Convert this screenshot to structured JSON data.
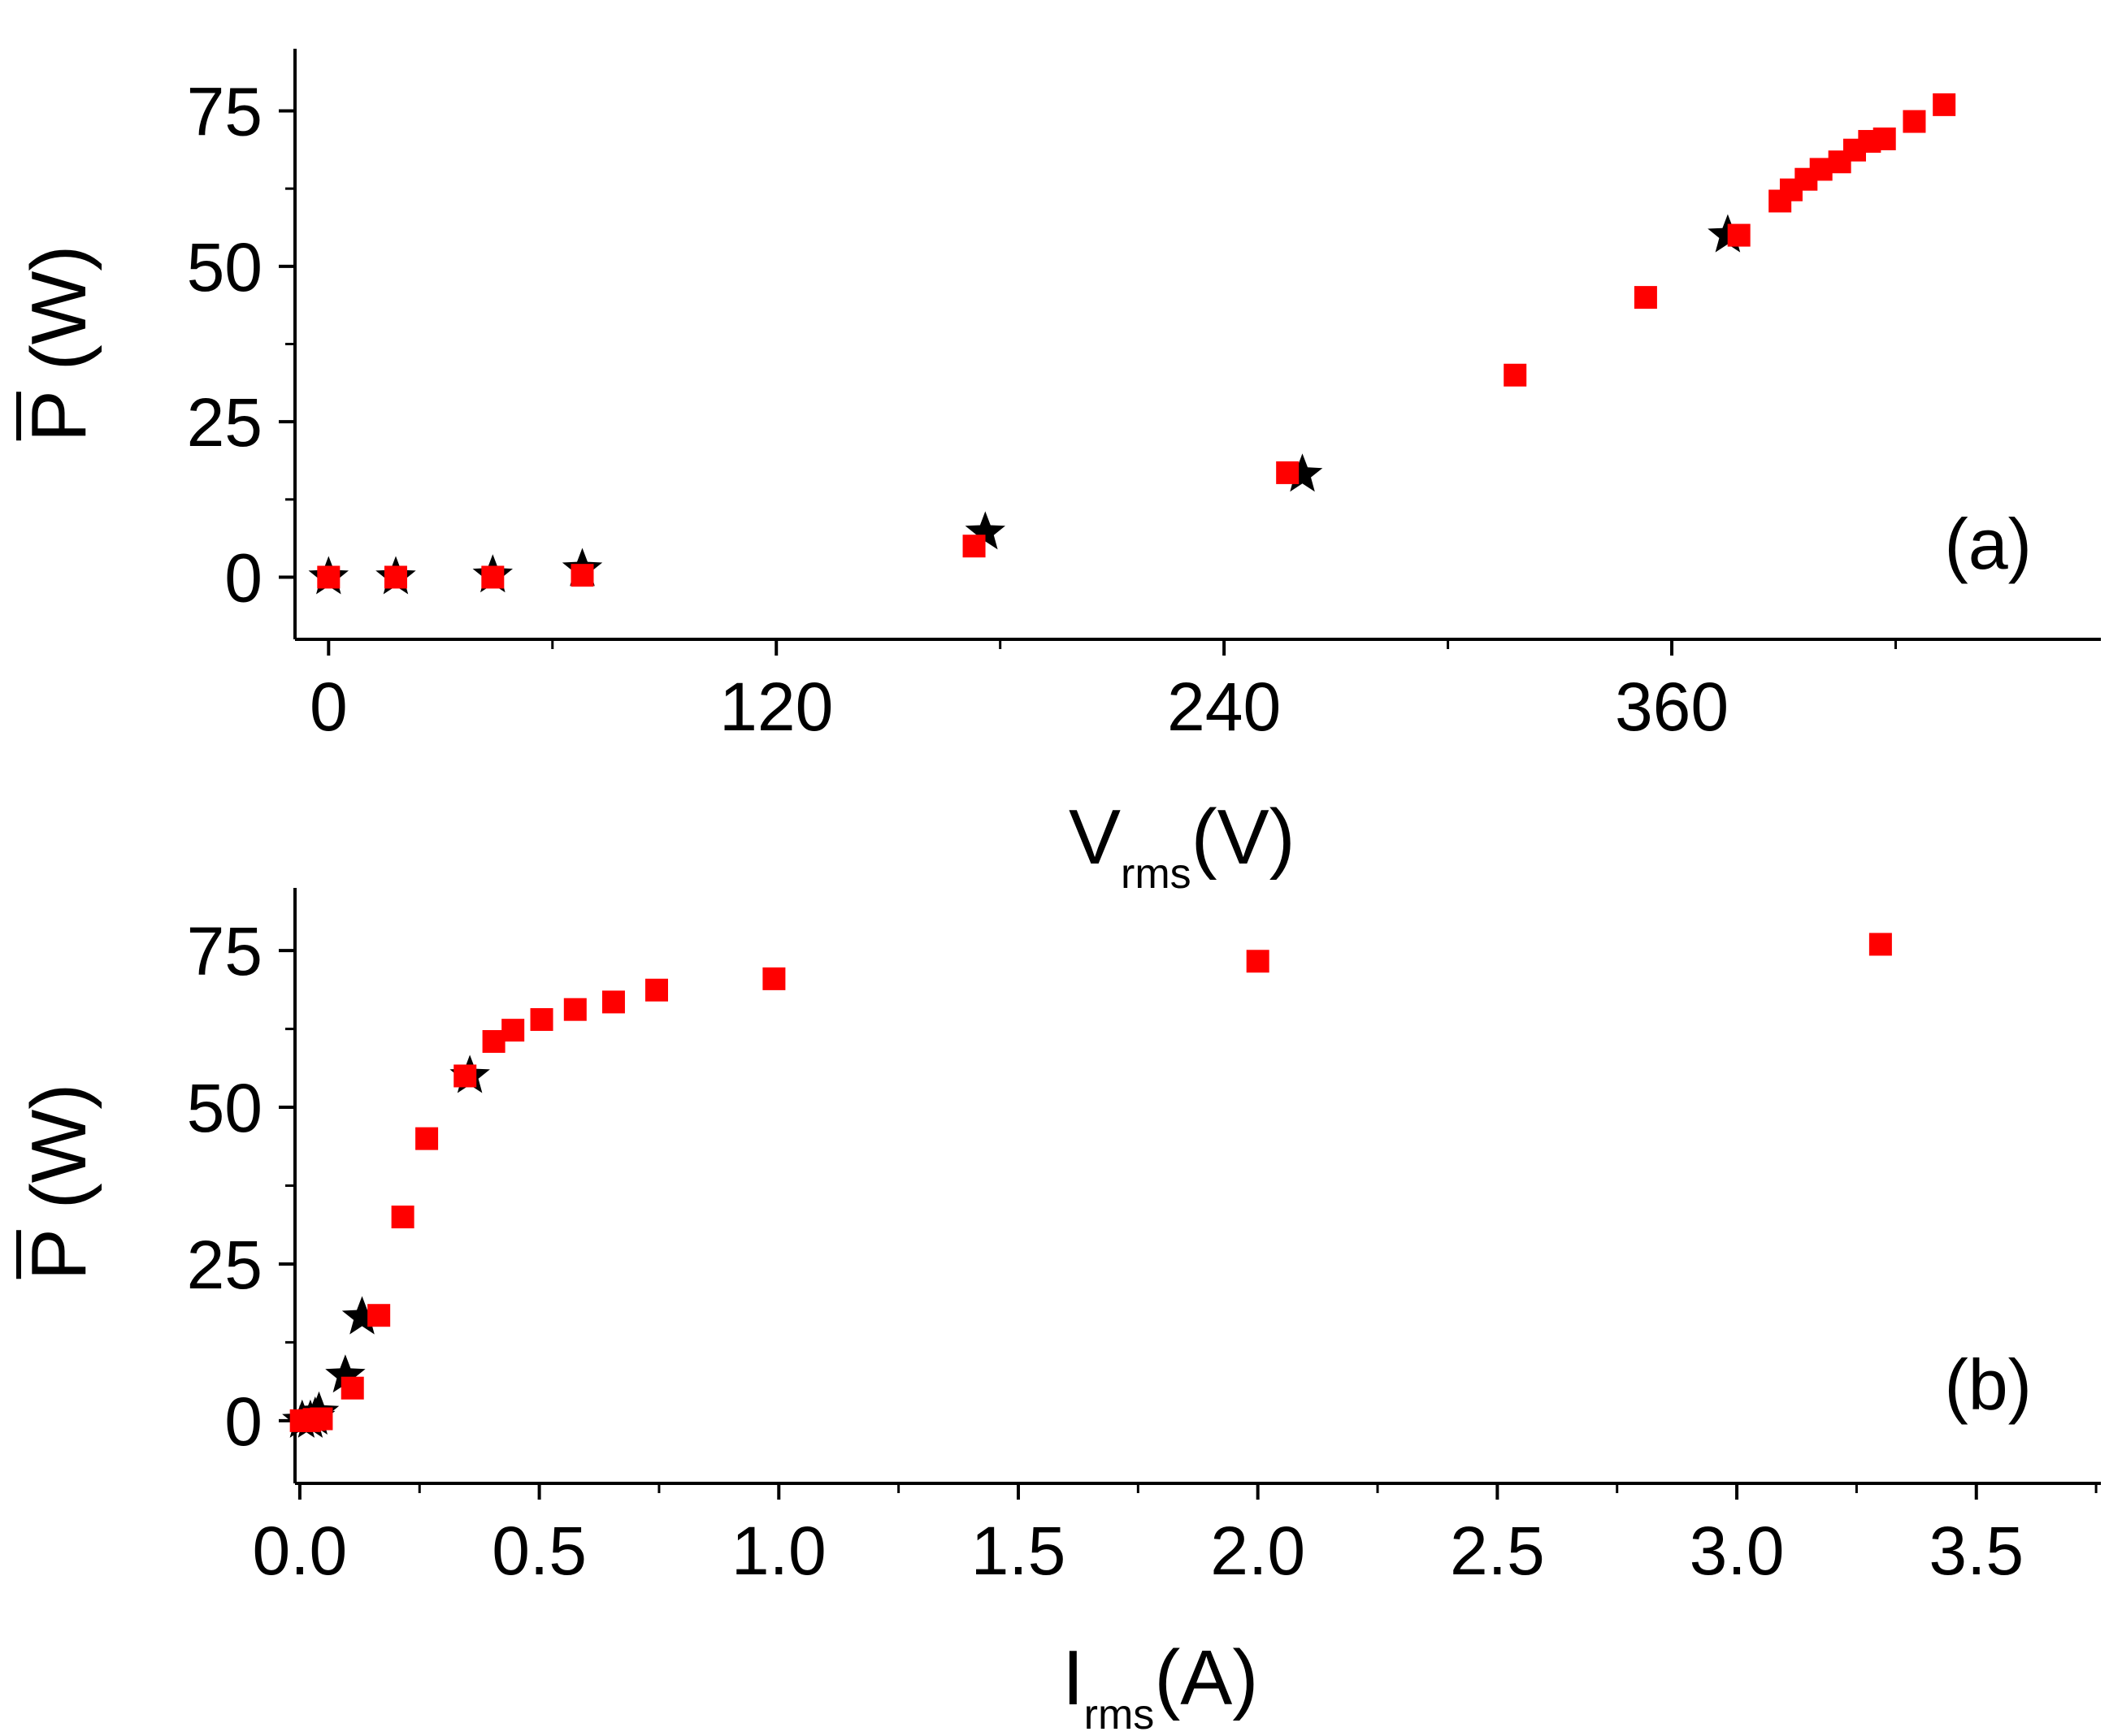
{
  "chart_data": [
    {
      "type": "scatter",
      "panel_label": "(a)",
      "xlabel": {
        "main": "V",
        "sub": "rms",
        "unit": "(V)"
      },
      "ylabel": {
        "symbol": "P",
        "unit": "(W)",
        "overline": true
      },
      "xlim": [
        -9,
        475
      ],
      "ylim": [
        -10,
        85
      ],
      "xticks": [
        0,
        120,
        240,
        360
      ],
      "xtick_labels": [
        "0",
        "120",
        "240",
        "360"
      ],
      "yticks": [
        0,
        25,
        50,
        75
      ],
      "ytick_labels": [
        "0",
        "25",
        "50",
        "75"
      ],
      "legend": "none",
      "colors": {
        "squares": "#ff0000",
        "stars": "#000000"
      },
      "series": [
        {
          "name": "squares",
          "marker": "square",
          "x": [
            0,
            18,
            44,
            68,
            173,
            257,
            318,
            353,
            378,
            389,
            392,
            396,
            400,
            405,
            409,
            413,
            417,
            425,
            433
          ],
          "y": [
            0,
            0,
            0,
            0.3,
            5,
            16.8,
            32.5,
            45,
            55,
            60.5,
            62.3,
            64,
            65.6,
            66.8,
            68.7,
            70.1,
            70.5,
            73.3,
            76
          ]
        },
        {
          "name": "stars",
          "marker": "star",
          "x": [
            0,
            18,
            44,
            68,
            176,
            261,
            375
          ],
          "y": [
            0,
            0,
            0.3,
            1.3,
            7.2,
            16.5,
            55
          ]
        }
      ]
    },
    {
      "type": "scatter",
      "panel_label": "(b)",
      "xlabel": {
        "main": "I",
        "sub": "rms",
        "unit": "(A)"
      },
      "ylabel": {
        "symbol": "P",
        "unit": "(W)",
        "overline": true
      },
      "xlim": [
        -0.01,
        3.76
      ],
      "ylim": [
        -10,
        85
      ],
      "xticks": [
        0,
        0.5,
        1,
        1.5,
        2,
        2.5,
        3,
        3.5
      ],
      "xtick_labels": [
        "0.0",
        "0.5",
        "1.0",
        "1.5",
        "2.0",
        "2.5",
        "3.0",
        "3.5"
      ],
      "yticks": [
        0,
        25,
        50,
        75
      ],
      "ytick_labels": [
        "0",
        "25",
        "50",
        "75"
      ],
      "legend": "none",
      "colors": {
        "squares": "#ff0000",
        "stars": "#000000"
      },
      "series": [
        {
          "name": "squares",
          "marker": "square",
          "x": [
            0.003,
            0.02,
            0.03,
            0.045,
            0.11,
            0.165,
            0.215,
            0.265,
            0.345,
            0.405,
            0.445,
            0.505,
            0.575,
            0.655,
            0.745,
            0.99,
            2.0,
            3.3
          ],
          "y": [
            0,
            0,
            0.2,
            0.3,
            5.2,
            16.8,
            32.5,
            45,
            55,
            60.5,
            62.3,
            64,
            65.6,
            66.8,
            68.7,
            70.5,
            73.3,
            76
          ]
        },
        {
          "name": "stars",
          "marker": "star",
          "x": [
            0.005,
            0.022,
            0.032,
            0.04,
            0.095,
            0.13,
            0.355
          ],
          "y": [
            0,
            0,
            0.5,
            1.3,
            7.2,
            16.5,
            55
          ]
        }
      ]
    }
  ]
}
